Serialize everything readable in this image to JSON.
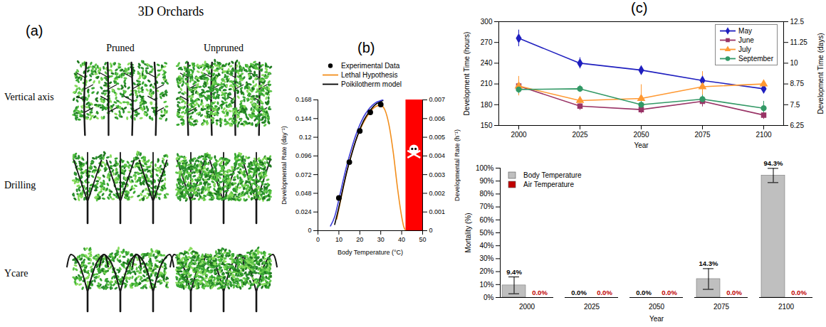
{
  "figure_a": {
    "panel_label": "(a)",
    "title": "3D Orchards",
    "columns": [
      "Pruned",
      "Unpruned"
    ],
    "rows": [
      "Vertical axis",
      "Drilling",
      "Ycare"
    ]
  },
  "chart_data": [
    {
      "panel_label": "(b)",
      "type": "line",
      "xlabel": "Body Temperature (°C)",
      "ylabel": "Developmental Rate (day⁻¹)",
      "y2label": "Developmental Rate (h⁻¹)",
      "xlim": [
        0,
        50
      ],
      "xticks": [
        0,
        10,
        20,
        30,
        40,
        50
      ],
      "ylim": [
        0,
        0.168
      ],
      "yticks": [
        0,
        0.024,
        0.048,
        0.072,
        0.096,
        0.12,
        0.144,
        0.168
      ],
      "y2lim": [
        0,
        0.007
      ],
      "y2ticks": [
        0,
        0.001,
        0.002,
        0.003,
        0.004,
        0.005,
        0.006,
        0.007
      ],
      "legend": "top",
      "series": [
        {
          "name": "Experimental Data",
          "type": "scatter",
          "color": "#000000",
          "marker": "circle",
          "x": [
            10,
            15,
            20,
            25,
            30
          ],
          "values": [
            0.042,
            0.088,
            0.128,
            0.152,
            0.162
          ]
        },
        {
          "name": "Lethal Hypothesis",
          "type": "line",
          "color": "#F28E1C",
          "x": [
            9,
            10,
            12,
            14,
            16,
            18,
            20,
            22,
            24,
            26,
            28,
            30,
            32,
            34,
            36,
            38,
            40,
            41,
            42
          ],
          "values": [
            0.015,
            0.028,
            0.054,
            0.078,
            0.098,
            0.115,
            0.129,
            0.14,
            0.149,
            0.156,
            0.16,
            0.161,
            0.155,
            0.135,
            0.1,
            0.055,
            0.018,
            0.005,
            0
          ]
        },
        {
          "name": "Poikilotherm model",
          "type": "line",
          "color": "#000000",
          "x": [
            8,
            10,
            12,
            14,
            16,
            18,
            20,
            22,
            24,
            26,
            28,
            30,
            31
          ],
          "values": [
            0.008,
            0.03,
            0.055,
            0.078,
            0.097,
            0.115,
            0.13,
            0.142,
            0.151,
            0.158,
            0.163,
            0.166,
            0.167
          ]
        },
        {
          "type": "line",
          "color": "#3B3BD9",
          "x": [
            6,
            8,
            10,
            12,
            14,
            16,
            18,
            20,
            22,
            24,
            26,
            28,
            30,
            31
          ],
          "values": [
            0.006,
            0.018,
            0.04,
            0.064,
            0.086,
            0.105,
            0.122,
            0.136,
            0.147,
            0.155,
            0.161,
            0.165,
            0.167,
            0.168
          ]
        }
      ],
      "lethal_zone": {
        "x": [
          42,
          50
        ],
        "color": "#FF0000"
      }
    },
    {
      "panel_label": "(c)",
      "type": "line",
      "categories": [
        "2000",
        "2025",
        "2050",
        "2075",
        "2100"
      ],
      "xlabel": "Year",
      "ylabel": "Development Time (hours)",
      "y2label": "Development Time (days)",
      "ylim": [
        150,
        300
      ],
      "yticks": [
        150,
        180,
        210,
        240,
        270,
        300
      ],
      "y2lim": [
        6.25,
        12.5
      ],
      "y2ticks": [
        6.25,
        7.5,
        8.75,
        10,
        11.25,
        12.5
      ],
      "legend": "top-right",
      "series": [
        {
          "name": "May",
          "color": "#1F1FBF",
          "marker": "diamond",
          "values": [
            276,
            240,
            230,
            215,
            203
          ],
          "errors": [
            12,
            8,
            6,
            8,
            5
          ]
        },
        {
          "name": "June",
          "color": "#993366",
          "marker": "square",
          "values": [
            207,
            178,
            173,
            185,
            165
          ],
          "errors": [
            8,
            6,
            6,
            8,
            6
          ]
        },
        {
          "name": "July",
          "color": "#FF9933",
          "marker": "triangle",
          "values": [
            207,
            186,
            189,
            206,
            210
          ],
          "errors": [
            14,
            5,
            20,
            22,
            4
          ]
        },
        {
          "name": "September",
          "color": "#339966",
          "marker": "circle",
          "values": [
            202,
            203,
            180,
            188,
            175
          ],
          "errors": [
            6,
            5,
            5,
            6,
            10
          ]
        }
      ]
    },
    {
      "type": "bar",
      "categories": [
        "2000",
        "2025",
        "2050",
        "2075",
        "2100"
      ],
      "xlabel": "Year",
      "ylabel": "Mortality (%)",
      "ylim": [
        0,
        100
      ],
      "yticks": [
        {
          "value": 0,
          "label": "0%"
        },
        {
          "value": 10,
          "label": "10%"
        },
        {
          "value": 20,
          "label": "20%"
        },
        {
          "value": 30,
          "label": "30%"
        },
        {
          "value": 40,
          "label": "40%"
        },
        {
          "value": 50,
          "label": "50%"
        },
        {
          "value": 60,
          "label": "60%"
        },
        {
          "value": 70,
          "label": "70%"
        },
        {
          "value": 80,
          "label": "80%"
        },
        {
          "value": 90,
          "label": "90%"
        },
        {
          "value": 100,
          "label": "100%"
        }
      ],
      "legend": "top-left",
      "data_labels": true,
      "series": [
        {
          "name": "Body Temperature",
          "color": "#BFBFBF",
          "values": [
            9.4,
            0,
            0,
            14.3,
            94.3
          ],
          "value_labels": [
            "9.4%",
            "0.0%",
            "0.0%",
            "14.3%",
            "94.3%"
          ],
          "errors": [
            6.5,
            0,
            0,
            8,
            5.5
          ]
        },
        {
          "name": "Air Temperature",
          "color": "#C00000",
          "values": [
            0,
            0,
            0,
            0,
            0
          ],
          "value_labels": [
            "0.0%",
            "0.0%",
            "0.0%",
            "0.0%",
            "0.0%"
          ]
        }
      ]
    }
  ]
}
